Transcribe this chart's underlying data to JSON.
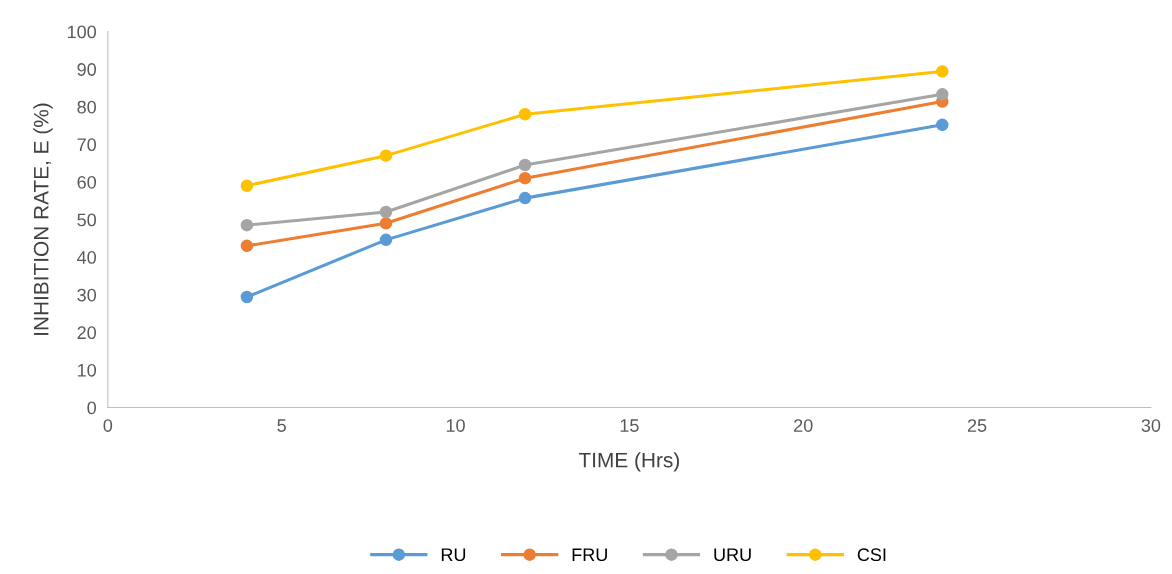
{
  "chart_data": {
    "type": "line",
    "xlabel": "TIME (Hrs)",
    "ylabel": "INHIBITION RATE, E (%)",
    "x": [
      4,
      8,
      12,
      24
    ],
    "series": [
      {
        "name": "RU",
        "color": "#5b9bd5",
        "values": [
          29.4,
          44.6,
          55.7,
          75.2
        ]
      },
      {
        "name": "FRU",
        "color": "#ed7d31",
        "values": [
          43,
          49,
          61,
          81.4
        ]
      },
      {
        "name": "URU",
        "color": "#a5a5a5",
        "values": [
          48.5,
          52,
          64.5,
          83.3
        ]
      },
      {
        "name": "CSI",
        "color": "#ffc000",
        "values": [
          59,
          67,
          78,
          89.4
        ]
      }
    ],
    "xlim": [
      0,
      30
    ],
    "xticks": [
      0,
      5,
      10,
      15,
      20,
      25,
      30
    ],
    "ylim": [
      0,
      100
    ],
    "yticks": [
      0,
      10,
      20,
      30,
      40,
      50,
      60,
      70,
      80,
      90,
      100
    ],
    "grid": false,
    "legend": "bottom",
    "marker": "circle",
    "line_style": "solid"
  }
}
